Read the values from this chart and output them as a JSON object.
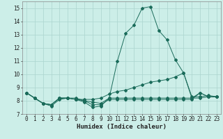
{
  "title": "",
  "xlabel": "Humidex (Indice chaleur)",
  "ylabel": "",
  "bg_color": "#cceee8",
  "line_color": "#1a6b5a",
  "grid_color": "#aad4ce",
  "xlim": [
    -0.5,
    23.5
  ],
  "ylim": [
    7,
    15.5
  ],
  "yticks": [
    7,
    8,
    9,
    10,
    11,
    12,
    13,
    14,
    15
  ],
  "xticks": [
    0,
    1,
    2,
    3,
    4,
    5,
    6,
    7,
    8,
    9,
    10,
    11,
    12,
    13,
    14,
    15,
    16,
    17,
    18,
    19,
    20,
    21,
    22,
    23
  ],
  "line1": {
    "x": [
      0,
      1,
      2,
      3,
      4,
      5,
      6,
      7,
      8,
      9,
      10,
      11,
      12,
      13,
      14,
      15,
      16,
      17,
      18,
      19,
      20,
      21,
      22,
      23
    ],
    "y": [
      8.6,
      8.2,
      7.8,
      7.7,
      8.2,
      8.2,
      8.1,
      7.9,
      7.5,
      7.6,
      8.2,
      11.0,
      13.1,
      13.7,
      15.0,
      15.1,
      13.3,
      12.6,
      11.1,
      10.1,
      8.2,
      8.6,
      8.3,
      8.3
    ]
  },
  "line2": {
    "x": [
      0,
      1,
      2,
      3,
      4,
      5,
      6,
      7,
      8,
      9,
      10,
      11,
      12,
      13,
      14,
      15,
      16,
      17,
      18,
      19,
      20,
      21,
      22,
      23
    ],
    "y": [
      8.6,
      8.2,
      7.8,
      7.7,
      8.2,
      8.2,
      8.1,
      8.1,
      8.1,
      8.2,
      8.5,
      8.7,
      8.8,
      9.0,
      9.2,
      9.4,
      9.5,
      9.6,
      9.8,
      10.1,
      8.3,
      8.3,
      8.4,
      8.3
    ]
  },
  "line3": {
    "x": [
      0,
      1,
      2,
      3,
      4,
      5,
      6,
      7,
      8,
      9,
      10,
      11,
      12,
      13,
      14,
      15,
      16,
      17,
      18,
      19,
      20,
      21,
      22,
      23
    ],
    "y": [
      8.6,
      8.2,
      7.8,
      7.7,
      8.2,
      8.2,
      8.1,
      8.0,
      7.9,
      7.8,
      8.2,
      8.2,
      8.2,
      8.2,
      8.2,
      8.2,
      8.2,
      8.2,
      8.2,
      8.2,
      8.2,
      8.2,
      8.3,
      8.3
    ]
  },
  "line4": {
    "x": [
      0,
      1,
      2,
      3,
      4,
      5,
      6,
      7,
      8,
      9,
      10,
      11,
      12,
      13,
      14,
      15,
      16,
      17,
      18,
      19,
      20,
      21,
      22,
      23
    ],
    "y": [
      8.6,
      8.2,
      7.8,
      7.6,
      8.1,
      8.2,
      8.2,
      8.0,
      7.7,
      7.7,
      8.1,
      8.1,
      8.1,
      8.1,
      8.1,
      8.1,
      8.1,
      8.1,
      8.1,
      8.1,
      8.1,
      8.6,
      8.3,
      8.3
    ]
  },
  "xlabel_fontsize": 6.5,
  "tick_fontsize": 5.5
}
